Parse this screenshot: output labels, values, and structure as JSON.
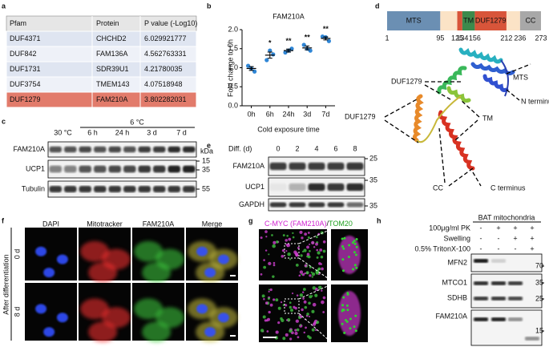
{
  "panels": [
    "a",
    "b",
    "c",
    "d",
    "e",
    "f",
    "g",
    "h"
  ],
  "table": {
    "header": [
      "Pfam",
      "Protein",
      "P value (-Log10)"
    ],
    "rows": [
      [
        "DUF4371",
        "CHCHD2",
        "6.029921777"
      ],
      [
        "DUF842",
        "FAM136A",
        "4.562763331"
      ],
      [
        "DUF1731",
        "SDR39U1",
        "4.21780035"
      ],
      [
        "DUF3754",
        "TMEM143",
        "4.07518948"
      ],
      [
        "DUF1279",
        "FAM210A",
        "3.802282031"
      ]
    ]
  },
  "chart_data": {
    "type": "dot",
    "title": "FAM210A",
    "ylabel": "Fold change to 0h",
    "xlabel": "Cold exposure time",
    "categories": [
      "0h",
      "6h",
      "24h",
      "3d",
      "7d"
    ],
    "values": [
      0.98,
      1.33,
      1.45,
      1.52,
      1.77
    ],
    "errors": [
      0.05,
      0.08,
      0.04,
      0.05,
      0.04
    ],
    "points": [
      [
        1.05,
        0.9,
        0.98
      ],
      [
        1.2,
        1.35,
        1.45
      ],
      [
        1.4,
        1.5,
        1.45
      ],
      [
        1.6,
        1.45,
        1.5
      ],
      [
        1.82,
        1.7,
        1.8
      ]
    ],
    "significance": [
      null,
      "*",
      "**",
      "**",
      "**"
    ],
    "color": "#2f86d6",
    "ylim": [
      0,
      2
    ],
    "yticks": [
      {
        "value": 0,
        "label": "0.0"
      },
      0.5,
      {
        "value": 1,
        "label": "1.0"
      },
      1.5,
      {
        "value": 2,
        "label": "2.0"
      }
    ]
  },
  "blot_c": {
    "temps": [
      "30 °C",
      "6 °C"
    ],
    "times": [
      "6 h",
      "24 h",
      "3 d",
      "7 d"
    ],
    "proteins": [
      "FAM210A",
      "UCP1",
      "Tubulin"
    ],
    "unit": "kDa",
    "markers": [
      "15",
      "35",
      "55"
    ]
  },
  "domains": {
    "names": [
      "MTS",
      "TM",
      "DUF1279",
      "CC"
    ],
    "positions": [
      "1",
      "95",
      "125",
      "134",
      "156",
      "212",
      "236",
      "273"
    ],
    "structure_labels": [
      "MTS",
      "DUF1279",
      "N terminus",
      "DUF1279",
      "TM",
      "CC",
      "C terminus"
    ]
  },
  "blot_e": {
    "axis": "Diff. (d)",
    "days": [
      "0",
      "2",
      "4",
      "6",
      "8"
    ],
    "proteins": [
      "FAM210A",
      "UCP1",
      "GAPDH"
    ],
    "markers": [
      "25",
      "35",
      "35"
    ]
  },
  "imaging_f": {
    "channels": [
      "DAPI",
      "Mitotracker",
      "FAM210A",
      "Merge"
    ],
    "group": "After differentiation",
    "rows": [
      "0 d",
      "8 d"
    ]
  },
  "imaging_g": {
    "title": [
      "C-MYC (FAM210A)",
      "/",
      "TOM20"
    ]
  },
  "blot_h": {
    "title": "BAT mitochondria",
    "treatments": [
      "100μg/ml PK",
      "Swelling",
      "0.5% TritonX-100"
    ],
    "signs": [
      [
        "-",
        "+",
        "+",
        "+"
      ],
      [
        "-",
        "-",
        "+",
        "+"
      ],
      [
        "-",
        "-",
        "-",
        "+"
      ]
    ],
    "proteins": [
      "MFN2",
      "MTCO1",
      "SDHB",
      "FAM210A"
    ],
    "markers": [
      "70",
      "35",
      "25",
      "15"
    ]
  }
}
